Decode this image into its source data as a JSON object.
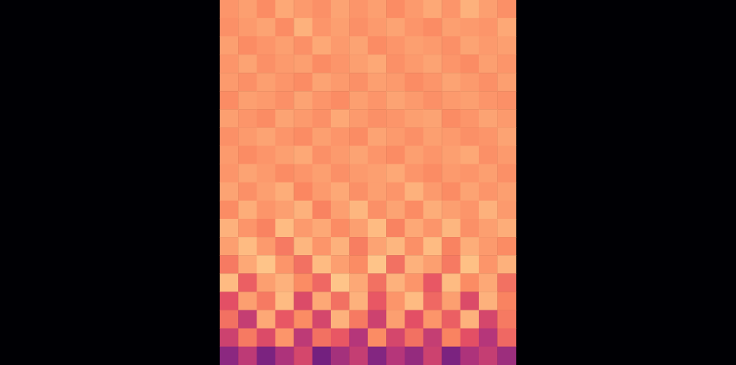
{
  "chart_data": {
    "type": "heatmap",
    "tick_labels": false,
    "value_range": [
      0,
      100
    ],
    "values": [
      [
        78,
        80,
        76,
        82,
        79,
        77,
        81,
        78,
        80,
        76,
        79,
        82,
        78,
        84,
        80,
        77
      ],
      [
        77,
        79,
        81,
        76,
        84,
        78,
        80,
        77,
        79,
        81,
        78,
        76,
        80,
        79,
        78,
        82
      ],
      [
        80,
        76,
        78,
        80,
        77,
        82,
        79,
        81,
        76,
        78,
        80,
        79,
        77,
        81,
        79,
        80
      ],
      [
        78,
        81,
        77,
        79,
        80,
        76,
        78,
        80,
        82,
        77,
        79,
        81,
        78,
        76,
        80,
        78
      ],
      [
        79,
        77,
        80,
        78,
        76,
        81,
        79,
        77,
        80,
        79,
        76,
        78,
        81,
        79,
        77,
        80
      ],
      [
        76,
        80,
        79,
        77,
        81,
        78,
        76,
        80,
        78,
        81,
        79,
        77,
        79,
        80,
        78,
        77
      ],
      [
        80,
        78,
        76,
        81,
        79,
        77,
        82,
        79,
        77,
        78,
        80,
        81,
        76,
        78,
        81,
        79
      ],
      [
        77,
        79,
        81,
        78,
        76,
        80,
        78,
        76,
        81,
        79,
        77,
        80,
        79,
        77,
        78,
        81
      ],
      [
        79,
        76,
        78,
        80,
        82,
        77,
        79,
        81,
        78,
        76,
        80,
        78,
        80,
        82,
        77,
        79
      ],
      [
        78,
        81,
        79,
        76,
        78,
        80,
        77,
        79,
        80,
        82,
        78,
        76,
        79,
        78,
        80,
        77
      ],
      [
        81,
        77,
        80,
        83,
        75,
        79,
        82,
        77,
        80,
        78,
        84,
        79,
        76,
        81,
        78,
        80
      ],
      [
        76,
        83,
        78,
        80,
        84,
        74,
        80,
        85,
        77,
        81,
        76,
        83,
        80,
        78,
        84,
        79
      ],
      [
        84,
        78,
        74,
        86,
        79,
        82,
        76,
        80,
        86,
        74,
        82,
        78,
        85,
        77,
        80,
        83
      ],
      [
        80,
        86,
        79,
        72,
        85,
        78,
        84,
        73,
        81,
        85,
        77,
        86,
        74,
        83,
        79,
        76
      ],
      [
        72,
        82,
        88,
        78,
        70,
        86,
        80,
        76,
        88,
        70,
        84,
        80,
        72,
        87,
        78,
        84
      ],
      [
        86,
        66,
        80,
        84,
        76,
        68,
        88,
        82,
        70,
        84,
        78,
        64,
        86,
        76,
        82,
        70
      ],
      [
        62,
        80,
        72,
        86,
        60,
        82,
        70,
        84,
        64,
        78,
        86,
        68,
        80,
        60,
        84,
        74
      ],
      [
        70,
        54,
        82,
        64,
        76,
        58,
        84,
        72,
        56,
        80,
        62,
        78,
        66,
        84,
        58,
        72
      ],
      [
        56,
        72,
        60,
        78,
        52,
        70,
        64,
        50,
        76,
        58,
        70,
        54,
        74,
        62,
        50,
        68
      ],
      [
        40,
        52,
        36,
        48,
        58,
        34,
        46,
        54,
        38,
        50,
        42,
        56,
        36,
        48,
        54,
        44
      ]
    ]
  }
}
